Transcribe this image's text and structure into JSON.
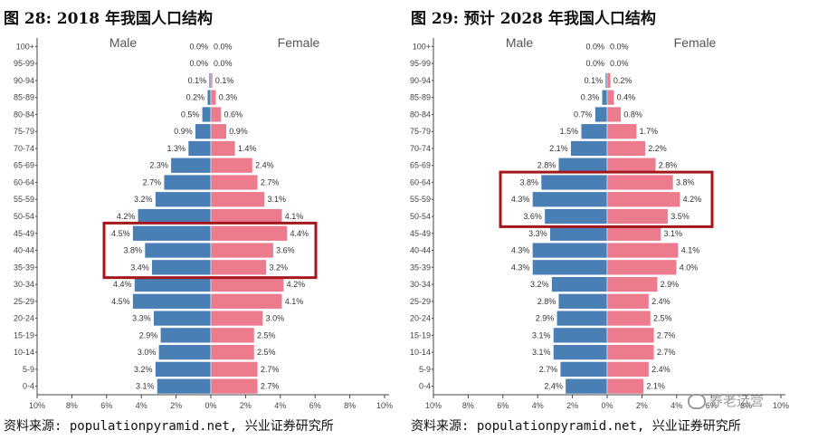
{
  "panels": [
    {
      "title": "图 28: 2018 年我国人口结构",
      "source": "资料来源: populationpyramid.net, 兴业证券研究所",
      "legend": {
        "male": "Male",
        "female": "Female"
      }
    },
    {
      "title": "图 29: 预计 2028 年我国人口结构",
      "source": "资料来源: populationpyramid.net, 兴业证券研究所",
      "legend": {
        "male": "Male",
        "female": "Female"
      }
    }
  ],
  "watermark": "养老运营",
  "colors": {
    "male": "#4a7fb5",
    "female": "#ec7b8e",
    "highlight": "#a3161c",
    "axis": "#444444"
  },
  "chart_data": [
    {
      "type": "bar",
      "title": "图 28: 2018 年我国人口结构",
      "orientation": "horizontal-pyramid",
      "categories": [
        "100+",
        "95-99",
        "90-94",
        "85-89",
        "80-84",
        "75-79",
        "70-74",
        "65-69",
        "60-64",
        "55-59",
        "50-54",
        "45-49",
        "40-44",
        "35-39",
        "30-34",
        "25-29",
        "20-24",
        "15-19",
        "10-14",
        "5-9",
        "0-4"
      ],
      "series": [
        {
          "name": "Male",
          "values": [
            0.0,
            0.0,
            0.1,
            0.2,
            0.5,
            0.9,
            1.3,
            2.3,
            2.7,
            3.2,
            4.2,
            4.5,
            3.8,
            3.4,
            4.4,
            4.5,
            3.3,
            2.9,
            3.0,
            3.2,
            3.1
          ]
        },
        {
          "name": "Female",
          "values": [
            0.0,
            0.0,
            0.1,
            0.3,
            0.6,
            0.9,
            1.4,
            2.4,
            2.7,
            3.1,
            4.1,
            4.4,
            3.6,
            3.2,
            4.2,
            4.1,
            3.0,
            2.5,
            2.5,
            2.7,
            2.7
          ]
        }
      ],
      "value_labels": {
        "male": [
          "0.0%",
          "0.0%",
          "0.1%",
          "0.2%",
          "0.5%",
          "0.9%",
          "1.3%",
          "2.3%",
          "2.7%",
          "3.2%",
          "4.2%",
          "4.5%",
          "3.8%",
          "3.4%",
          "4.4%",
          "4.5%",
          "3.3%",
          "2.9%",
          "3.0%",
          "3.2%",
          "3.1%"
        ],
        "female": [
          "0.0%",
          "0.0%",
          "0.1%",
          "0.3%",
          "0.6%",
          "0.9%",
          "1.4%",
          "2.4%",
          "2.7%",
          "3.1%",
          "4.1%",
          "4.4%",
          "3.6%",
          "3.2%",
          "4.2%",
          "4.1%",
          "3.0%",
          "2.5%",
          "2.5%",
          "2.7%",
          "2.7%"
        ]
      },
      "xticks": [
        "10%",
        "8%",
        "6%",
        "4%",
        "2%",
        "0%",
        "2%",
        "4%",
        "6%",
        "8%",
        "10%"
      ],
      "xlim": [
        -10,
        10
      ],
      "highlight_categories": [
        "45-49",
        "40-44",
        "35-39"
      ]
    },
    {
      "type": "bar",
      "title": "图 29: 预计 2028 年我国人口结构",
      "orientation": "horizontal-pyramid",
      "categories": [
        "100+",
        "95-99",
        "90-94",
        "85-89",
        "80-84",
        "75-79",
        "70-74",
        "65-69",
        "60-64",
        "55-59",
        "50-54",
        "45-49",
        "40-44",
        "35-39",
        "30-34",
        "25-29",
        "20-24",
        "15-19",
        "10-14",
        "5-9",
        "0-4"
      ],
      "series": [
        {
          "name": "Male",
          "values": [
            0.0,
            0.0,
            0.1,
            0.3,
            0.7,
            1.5,
            2.1,
            2.8,
            3.8,
            4.3,
            3.6,
            3.3,
            4.3,
            4.3,
            3.2,
            2.8,
            2.9,
            3.1,
            3.1,
            2.7,
            2.4
          ]
        },
        {
          "name": "Female",
          "values": [
            0.0,
            0.0,
            0.2,
            0.4,
            0.8,
            1.7,
            2.2,
            2.8,
            3.8,
            4.2,
            3.5,
            3.1,
            4.1,
            4.0,
            2.9,
            2.4,
            2.5,
            2.7,
            2.7,
            2.4,
            2.1
          ]
        }
      ],
      "value_labels": {
        "male": [
          "0.0%",
          "0.0%",
          "0.1%",
          "0.3%",
          "0.7%",
          "1.5%",
          "2.1%",
          "2.8%",
          "3.8%",
          "4.3%",
          "3.6%",
          "3.3%",
          "4.3%",
          "4.3%",
          "3.2%",
          "2.8%",
          "2.9%",
          "3.1%",
          "3.1%",
          "2.7%",
          "2.4%"
        ],
        "female": [
          "0.0%",
          "0.0%",
          "0.2%",
          "0.4%",
          "0.8%",
          "1.7%",
          "2.2%",
          "2.8%",
          "3.8%",
          "4.2%",
          "3.5%",
          "3.1%",
          "4.1%",
          "4.0%",
          "2.9%",
          "2.4%",
          "2.5%",
          "2.7%",
          "2.7%",
          "2.4%",
          "2.1%"
        ]
      },
      "xticks": [
        "10%",
        "8%",
        "6%",
        "4%",
        "2%",
        "0%",
        "2%",
        "4%",
        "6%",
        "8%",
        "10%"
      ],
      "xlim": [
        -10,
        10
      ],
      "highlight_categories": [
        "60-64",
        "55-59",
        "50-54"
      ]
    }
  ]
}
